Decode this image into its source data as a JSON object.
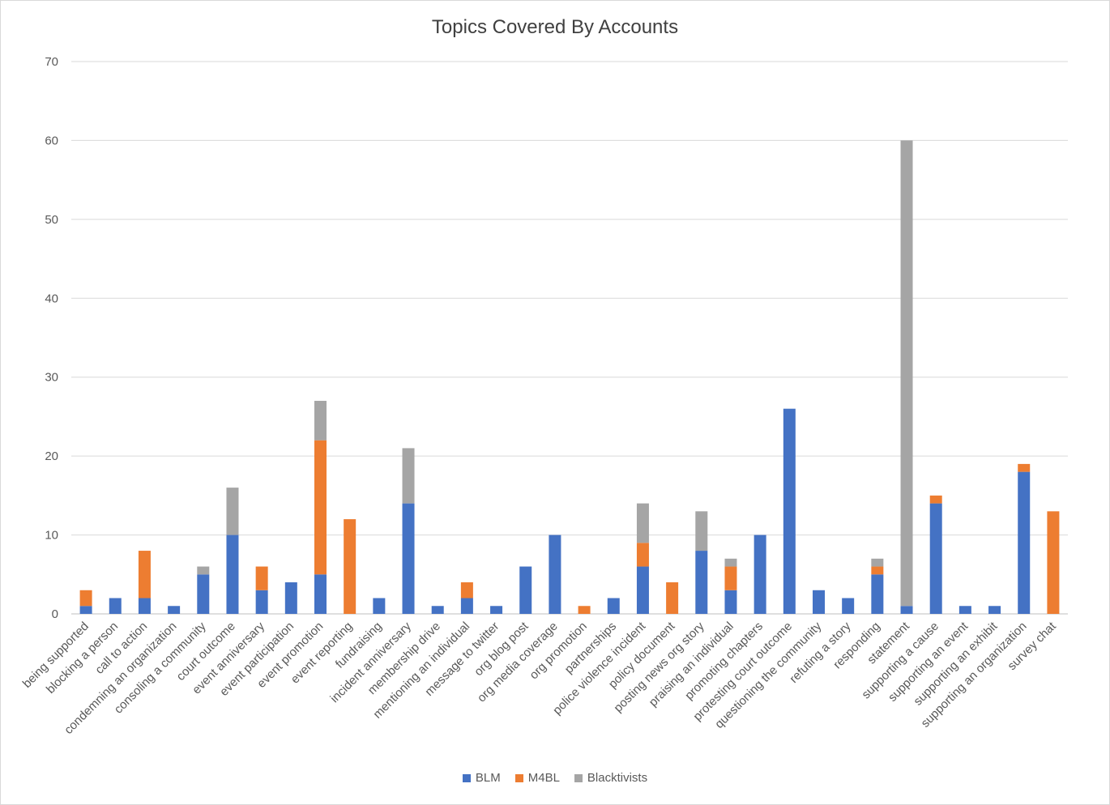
{
  "chart_data": {
    "type": "bar",
    "stacked": true,
    "title": "Topics Covered By Accounts",
    "xlabel": "",
    "ylabel": "",
    "ylim": [
      0,
      70
    ],
    "yticks": [
      0,
      10,
      20,
      30,
      40,
      50,
      60,
      70
    ],
    "grid": true,
    "legend_position": "bottom",
    "categories": [
      "being supported",
      "blocking a person",
      "call to action",
      "condemning an organization",
      "consoling a community",
      "court outcome",
      "event anniversary",
      "event participation",
      "event promotion",
      "event reporting",
      "fundraising",
      "incident anniversary",
      "membership drive",
      "mentioning an individual",
      "message to twitter",
      "org blog post",
      "org media coverage",
      "org promotion",
      "partnerships",
      "police violence incident",
      "policy document",
      "posting news org story",
      "praising an individual",
      "promoting chapters",
      "protesting court outcome",
      "questioning the community",
      "refuting a story",
      "responding",
      "statement",
      "supporting a cause",
      "supporting an event",
      "supporting an exhibit",
      "supporting an organization",
      "survey chat"
    ],
    "series": [
      {
        "name": "BLM",
        "color": "#4472c4",
        "values": [
          1,
          2,
          2,
          1,
          5,
          10,
          3,
          4,
          5,
          0,
          2,
          14,
          1,
          2,
          1,
          6,
          10,
          0,
          2,
          6,
          0,
          8,
          3,
          10,
          26,
          3,
          2,
          5,
          1,
          14,
          1,
          1,
          18,
          0
        ]
      },
      {
        "name": "M4BL",
        "color": "#ed7d31",
        "values": [
          2,
          0,
          6,
          0,
          0,
          0,
          3,
          0,
          17,
          12,
          0,
          0,
          0,
          2,
          0,
          0,
          0,
          1,
          0,
          3,
          4,
          0,
          3,
          0,
          0,
          0,
          0,
          1,
          0,
          1,
          0,
          0,
          1,
          13
        ]
      },
      {
        "name": "Blacktivists",
        "color": "#a5a5a5",
        "values": [
          0,
          0,
          0,
          0,
          1,
          6,
          0,
          0,
          5,
          0,
          0,
          7,
          0,
          0,
          0,
          0,
          0,
          0,
          0,
          5,
          0,
          5,
          1,
          0,
          0,
          0,
          0,
          1,
          59,
          0,
          0,
          0,
          0,
          0
        ]
      }
    ]
  }
}
